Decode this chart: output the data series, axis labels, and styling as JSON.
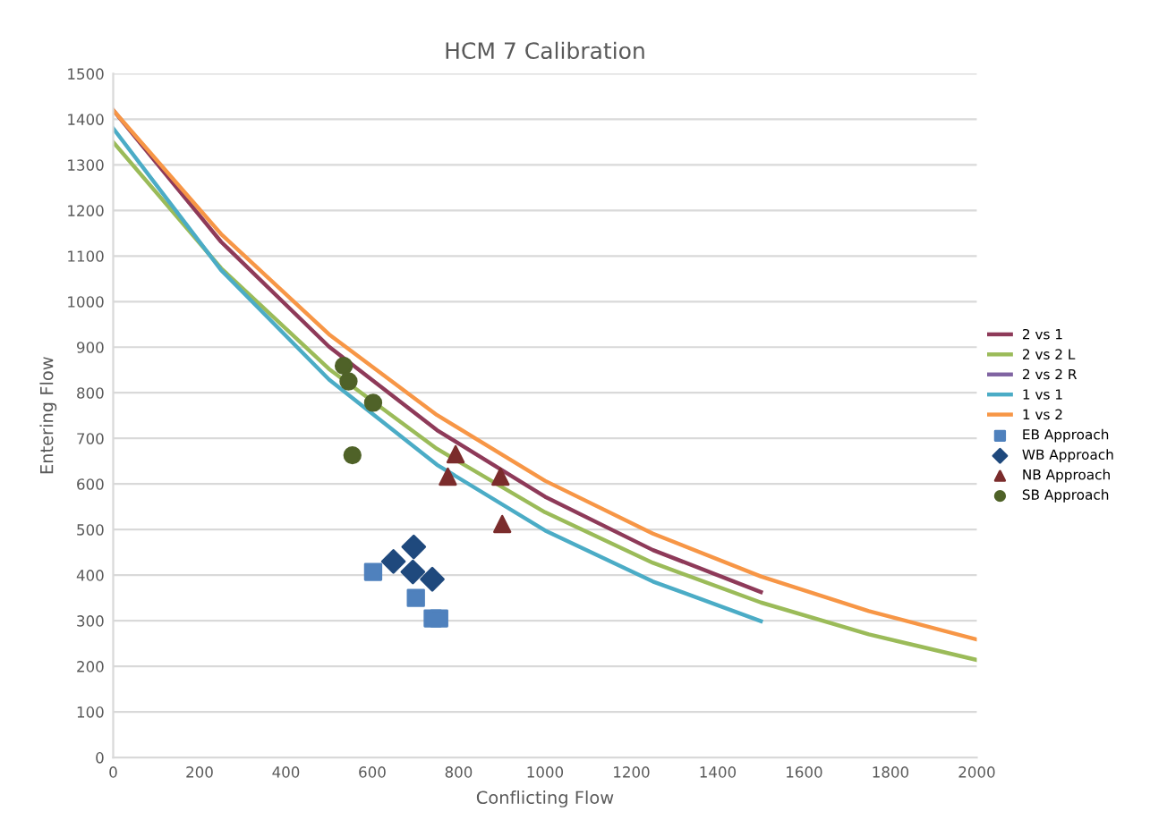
{
  "chart_data": {
    "type": "line",
    "title": "HCM 7 Calibration",
    "xlabel": "Conflicting Flow",
    "ylabel": "Entering Flow",
    "xlim": [
      0,
      2000
    ],
    "xticks": [
      0,
      200,
      400,
      600,
      800,
      1000,
      1200,
      1400,
      1600,
      1800,
      2000
    ],
    "ylim": [
      0,
      1500
    ],
    "yticks": [
      0,
      100,
      200,
      300,
      400,
      500,
      600,
      700,
      800,
      900,
      1000,
      1100,
      1200,
      1300,
      1400,
      1500
    ],
    "grid": "y",
    "legend": "right",
    "marker": "none",
    "line_style": "solid",
    "series": [
      {
        "name": "2 vs 1",
        "color": "#8e3a59",
        "x": [
          0,
          250,
          500,
          750,
          1000,
          1250,
          1500
        ],
        "values": [
          1420,
          1131,
          901,
          718,
          572,
          455,
          363
        ]
      },
      {
        "name": "2 vs 2 L",
        "color": "#9bbb59",
        "x": [
          0,
          250,
          500,
          750,
          1000,
          1250,
          1500,
          1750,
          2000
        ],
        "values": [
          1350,
          1073,
          852,
          677,
          538,
          427,
          340,
          270,
          214
        ]
      },
      {
        "name": "2 vs 2 R",
        "color": "#8064a2"
      },
      {
        "name": "1 vs 1",
        "color": "#4bacc6",
        "x": [
          0,
          250,
          500,
          750,
          1000,
          1250,
          1500
        ],
        "values": [
          1380,
          1069,
          829,
          642,
          498,
          386,
          299
        ]
      },
      {
        "name": "1 vs 2",
        "color": "#f79646",
        "x": [
          0,
          250,
          500,
          750,
          1000,
          1250,
          1500,
          1750,
          2000
        ],
        "values": [
          1420,
          1148,
          928,
          751,
          607,
          491,
          397,
          321,
          259
        ]
      },
      {
        "name": "EB Approach",
        "type": "scatter",
        "marker": "square",
        "color": "#4f81bd",
        "x": [
          602,
          701,
          740,
          755
        ],
        "values": [
          407,
          350,
          305,
          305
        ]
      },
      {
        "name": "WB Approach",
        "type": "scatter",
        "marker": "diamond",
        "color": "#1f497d",
        "x": [
          696,
          649,
          694,
          739
        ],
        "values": [
          462,
          430,
          407,
          391
        ]
      },
      {
        "name": "NB Approach",
        "type": "scatter",
        "marker": "triangle",
        "color": "#7b2c2c",
        "x": [
          793,
          775,
          897,
          901
        ],
        "values": [
          665,
          616,
          616,
          512
        ]
      },
      {
        "name": "SB Approach",
        "type": "scatter",
        "marker": "circle",
        "color": "#4f6228",
        "x": [
          534,
          545,
          602,
          554
        ],
        "values": [
          859,
          825,
          778,
          663
        ]
      }
    ]
  }
}
